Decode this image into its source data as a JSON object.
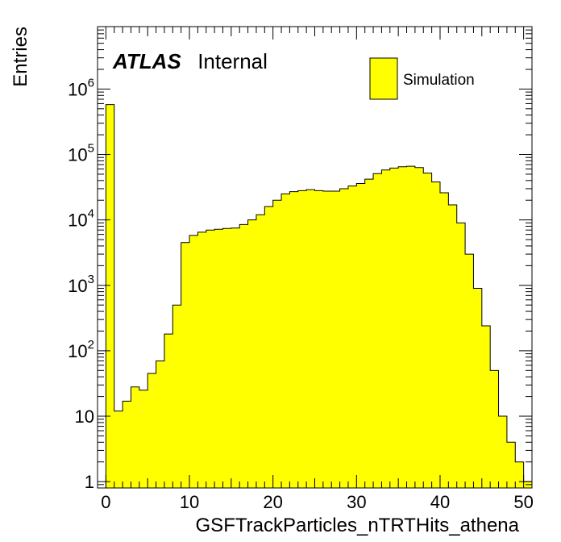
{
  "chart_data": {
    "type": "bar",
    "style": "histogram",
    "xlabel": "GSFTrackParticles_nTRTHits_athena",
    "ylabel": "Entries",
    "y_scale": "log",
    "xlim": [
      -1,
      51
    ],
    "ylim": [
      0.8,
      9000000
    ],
    "bin_width": 1,
    "x_ticks": [
      0,
      10,
      20,
      30,
      40,
      50
    ],
    "x_tick_labels": [
      "0",
      "10",
      "20",
      "30",
      "40",
      "50"
    ],
    "y_ticks": [
      1,
      10,
      100,
      1000,
      10000,
      100000,
      1000000
    ],
    "y_tick_labels": [
      {
        "base": "1",
        "exp": ""
      },
      {
        "base": "10",
        "exp": ""
      },
      {
        "base": "10",
        "exp": "2"
      },
      {
        "base": "10",
        "exp": "3"
      },
      {
        "base": "10",
        "exp": "4"
      },
      {
        "base": "10",
        "exp": "5"
      },
      {
        "base": "10",
        "exp": "6"
      }
    ],
    "bin_lows": [
      -1,
      0,
      1,
      2,
      3,
      4,
      5,
      6,
      7,
      8,
      9,
      10,
      11,
      12,
      13,
      14,
      15,
      16,
      17,
      18,
      19,
      20,
      21,
      22,
      23,
      24,
      25,
      26,
      27,
      28,
      29,
      30,
      31,
      32,
      33,
      34,
      35,
      36,
      37,
      38,
      39,
      40,
      41,
      42,
      43,
      44,
      45,
      46,
      47,
      48,
      49,
      50
    ],
    "values": [
      0.8,
      580000,
      12,
      17,
      28,
      25,
      45,
      70,
      180,
      500,
      4500,
      5800,
      6500,
      7000,
      7200,
      7400,
      7500,
      8500,
      10000,
      12000,
      16000,
      20000,
      25000,
      27000,
      28000,
      29000,
      28000,
      27500,
      27500,
      30000,
      33000,
      36000,
      42000,
      51000,
      58000,
      62000,
      65000,
      66000,
      63000,
      52000,
      38000,
      26000,
      17000,
      9000,
      3000,
      900,
      240,
      50,
      10,
      4,
      2,
      1
    ],
    "series": [
      {
        "name": "Simulation",
        "color": "#ffff00",
        "values_ref": "values"
      }
    ],
    "legend_position": "top-right",
    "grid": false,
    "annotations": [
      {
        "bold_italic": "ATLAS",
        "text": "Internal",
        "position": "top-left"
      }
    ]
  }
}
